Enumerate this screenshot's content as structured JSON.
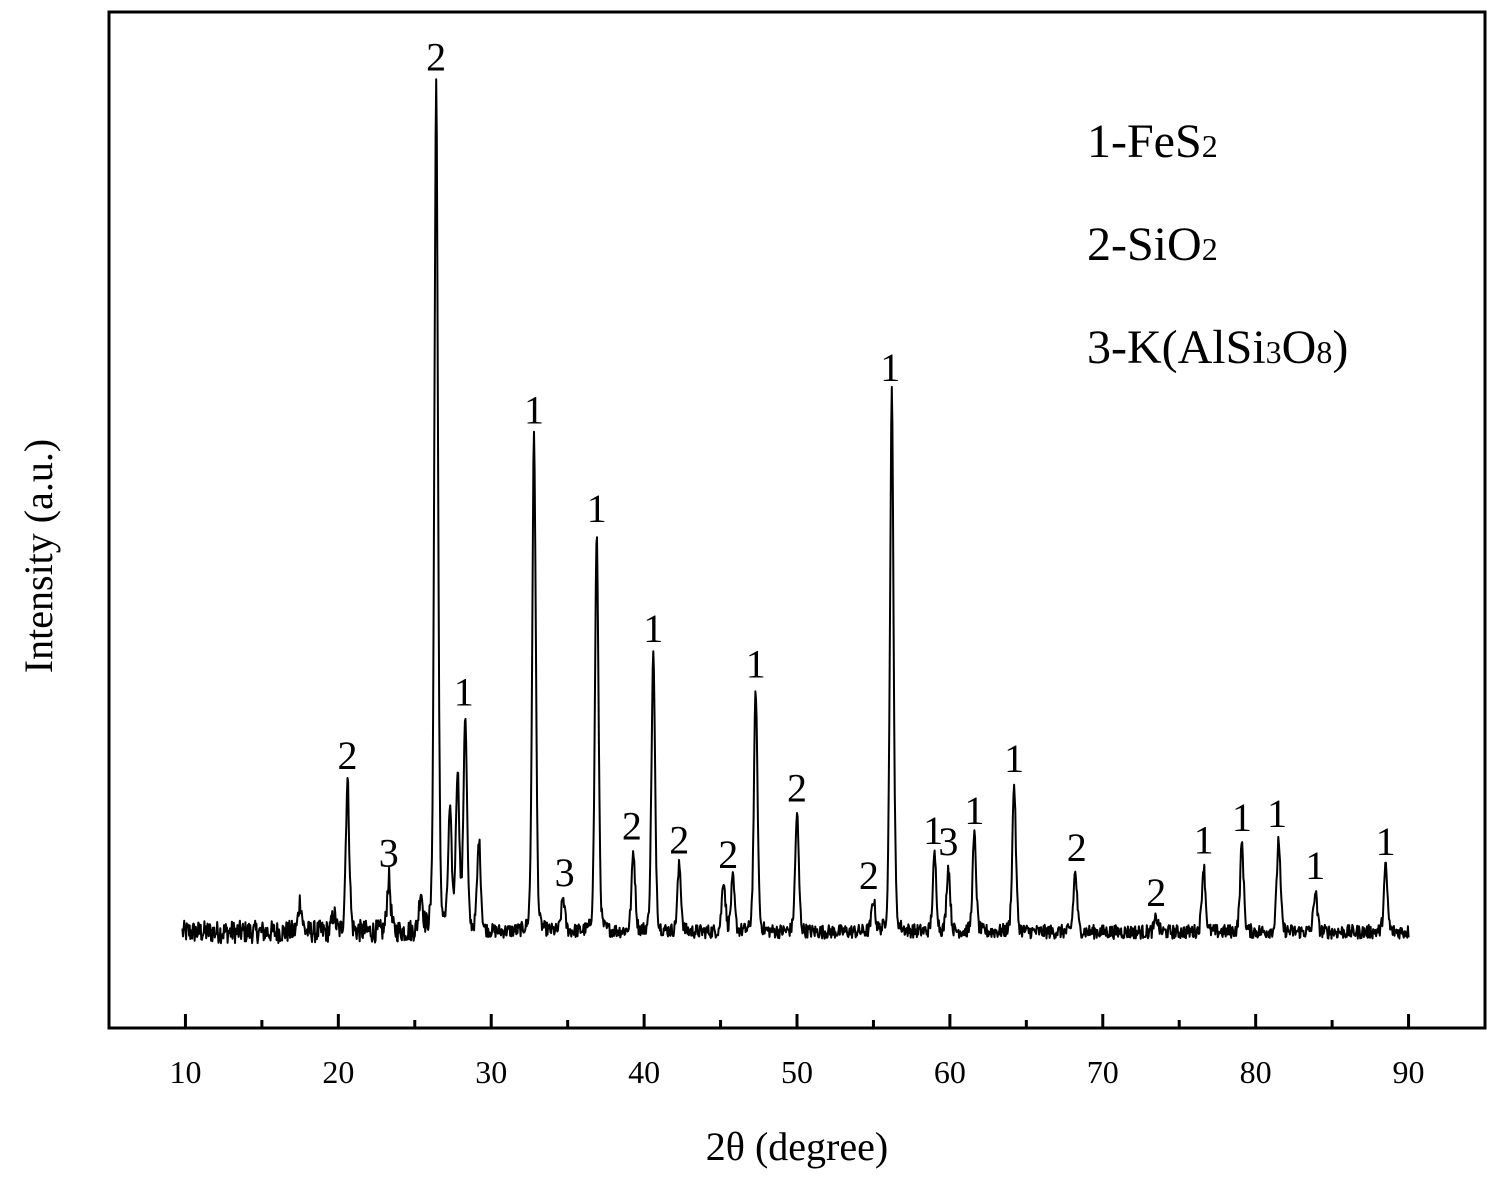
{
  "chart_data": {
    "type": "line",
    "title": "",
    "xlabel": "2θ (degree)",
    "ylabel": "Intensity (a.u.)",
    "xlim": [
      5,
      95
    ],
    "ylim": [
      -6,
      66
    ],
    "x_ticks": [
      10,
      20,
      30,
      40,
      50,
      60,
      70,
      80,
      90
    ],
    "x_tick_labels": [
      "10",
      "20",
      "30",
      "40",
      "50",
      "60",
      "70",
      "80",
      "90"
    ],
    "y_tick_labels_shown": false,
    "grid": false,
    "legend_position": "top-right",
    "legend": [
      {
        "index": "1",
        "sep": "-",
        "parts": [
          "FeS",
          "2"
        ]
      },
      {
        "index": "2",
        "sep": "-",
        "parts": [
          "SiO",
          "2"
        ]
      },
      {
        "index": "3",
        "sep": "-",
        "parts": [
          "K(AlSi",
          "3",
          "O",
          "8",
          ")"
        ]
      }
    ],
    "baseline": 0.8,
    "series": [
      {
        "name": "",
        "x_range": [
          9.8,
          90
        ],
        "peaks": [
          {
            "x": 17.5,
            "y": 3.0
          },
          {
            "x": 19.7,
            "y": 2.0
          },
          {
            "x": 20.6,
            "y": 11.5
          },
          {
            "x": 23.3,
            "y": 4.6
          },
          {
            "x": 25.4,
            "y": 3.5
          },
          {
            "x": 26.4,
            "y": 61.0
          },
          {
            "x": 27.3,
            "y": 9.0
          },
          {
            "x": 27.8,
            "y": 12.0
          },
          {
            "x": 28.3,
            "y": 16.0
          },
          {
            "x": 29.2,
            "y": 7.2
          },
          {
            "x": 32.8,
            "y": 36.0
          },
          {
            "x": 34.7,
            "y": 3.2
          },
          {
            "x": 36.9,
            "y": 29.0
          },
          {
            "x": 39.3,
            "y": 6.5
          },
          {
            "x": 40.6,
            "y": 20.5
          },
          {
            "x": 42.3,
            "y": 5.5
          },
          {
            "x": 45.2,
            "y": 4.5
          },
          {
            "x": 45.8,
            "y": 4.5
          },
          {
            "x": 47.3,
            "y": 18.0
          },
          {
            "x": 50.0,
            "y": 9.2
          },
          {
            "x": 55.0,
            "y": 3.0
          },
          {
            "x": 56.2,
            "y": 39.0
          },
          {
            "x": 59.0,
            "y": 6.2
          },
          {
            "x": 59.9,
            "y": 5.4
          },
          {
            "x": 61.6,
            "y": 7.6
          },
          {
            "x": 64.2,
            "y": 11.3
          },
          {
            "x": 68.2,
            "y": 5.0
          },
          {
            "x": 73.5,
            "y": 1.8
          },
          {
            "x": 76.6,
            "y": 5.5
          },
          {
            "x": 79.1,
            "y": 7.1
          },
          {
            "x": 81.5,
            "y": 7.4
          },
          {
            "x": 83.9,
            "y": 3.7
          },
          {
            "x": 88.5,
            "y": 5.4
          }
        ]
      }
    ],
    "annotations": [
      {
        "text": "2",
        "x": 20.6,
        "y": 11.5
      },
      {
        "text": "3",
        "x": 23.3,
        "y": 4.6
      },
      {
        "text": "2",
        "x": 26.4,
        "y": 61.0
      },
      {
        "text": "1",
        "x": 28.2,
        "y": 16.0
      },
      {
        "text": "1",
        "x": 32.8,
        "y": 36.0
      },
      {
        "text": "3",
        "x": 34.8,
        "y": 3.2
      },
      {
        "text": "1",
        "x": 36.9,
        "y": 29.0
      },
      {
        "text": "2",
        "x": 39.2,
        "y": 6.5
      },
      {
        "text": "1",
        "x": 40.6,
        "y": 20.5
      },
      {
        "text": "2",
        "x": 42.3,
        "y": 5.5
      },
      {
        "text": "2",
        "x": 45.5,
        "y": 4.5
      },
      {
        "text": "1",
        "x": 47.3,
        "y": 18.0
      },
      {
        "text": "2",
        "x": 50.0,
        "y": 9.2
      },
      {
        "text": "2",
        "x": 54.7,
        "y": 3.0
      },
      {
        "text": "1",
        "x": 56.1,
        "y": 39.0
      },
      {
        "text": "1",
        "x": 58.9,
        "y": 6.2
      },
      {
        "text": "3",
        "x": 59.9,
        "y": 5.4
      },
      {
        "text": "1",
        "x": 61.6,
        "y": 7.6
      },
      {
        "text": "1",
        "x": 64.2,
        "y": 11.3
      },
      {
        "text": "2",
        "x": 68.3,
        "y": 5.0
      },
      {
        "text": "2",
        "x": 73.5,
        "y": 1.8
      },
      {
        "text": "1",
        "x": 76.6,
        "y": 5.5
      },
      {
        "text": "1",
        "x": 79.1,
        "y": 7.1
      },
      {
        "text": "1",
        "x": 81.4,
        "y": 7.4
      },
      {
        "text": "1",
        "x": 83.9,
        "y": 3.7
      },
      {
        "text": "1",
        "x": 88.5,
        "y": 5.4
      }
    ]
  }
}
